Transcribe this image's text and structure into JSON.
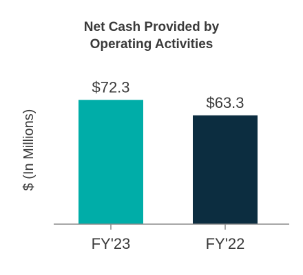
{
  "chart_data": {
    "type": "bar",
    "title": [
      "Net Cash Provided by",
      "Operating Activities"
    ],
    "ylabel": "$ (In Millions)",
    "xlabel": "",
    "categories": [
      "FY'23",
      "FY'22"
    ],
    "values": [
      72.3,
      63.3
    ],
    "value_labels": [
      "$72.3",
      "$63.3"
    ],
    "colors": [
      "#00ADA8",
      "#0C2D40"
    ],
    "axis_color": "#8A8A8A",
    "ylim": [
      0,
      80
    ],
    "grid": false,
    "legend": "none"
  }
}
